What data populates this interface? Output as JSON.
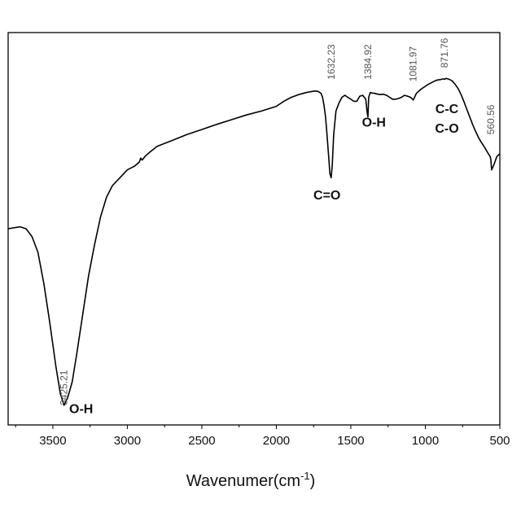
{
  "chart_data": {
    "type": "line",
    "title": "",
    "xlabel": "Wavenumer(cm",
    "xlabel_sup": "-1",
    "xlabel_close": ")",
    "ylabel": "",
    "xlim": [
      3800,
      500
    ],
    "ylim": [
      0,
      100
    ],
    "x_reversed": true,
    "y_ticks_visible": false,
    "grid": false,
    "line_color": "#000000",
    "xticks": [
      {
        "value": 3500,
        "label": "3500"
      },
      {
        "value": 3000,
        "label": "3000"
      },
      {
        "value": 2500,
        "label": "2500"
      },
      {
        "value": 2000,
        "label": "2000"
      },
      {
        "value": 1500,
        "label": "1500"
      },
      {
        "value": 1000,
        "label": "1000"
      },
      {
        "value": 500,
        "label": "500"
      }
    ],
    "series": [
      {
        "x": [
          3800,
          3720,
          3680,
          3640,
          3600,
          3560,
          3520,
          3480,
          3450,
          3425,
          3400,
          3370,
          3340,
          3300,
          3260,
          3220,
          3180,
          3140,
          3100,
          3050,
          3000,
          2950,
          2920,
          2910,
          2900,
          2880,
          2850,
          2800,
          2700,
          2600,
          2500,
          2400,
          2300,
          2200,
          2100,
          2000,
          1950,
          1900,
          1850,
          1800,
          1760,
          1740,
          1720,
          1700,
          1690,
          1680,
          1670,
          1660,
          1650,
          1640,
          1632,
          1625,
          1615,
          1600,
          1580,
          1560,
          1540,
          1520,
          1500,
          1480,
          1460,
          1440,
          1420,
          1400,
          1390,
          1385,
          1380,
          1370,
          1360,
          1340,
          1320,
          1300,
          1280,
          1260,
          1240,
          1220,
          1200,
          1180,
          1160,
          1140,
          1120,
          1100,
          1085,
          1082,
          1075,
          1060,
          1040,
          1020,
          1000,
          980,
          960,
          940,
          920,
          900,
          880,
          872,
          860,
          840,
          820,
          800,
          780,
          760,
          740,
          720,
          700,
          680,
          660,
          640,
          620,
          600,
          580,
          565,
          560,
          555,
          540,
          520,
          500
        ],
        "y": [
          50,
          50.5,
          50,
          48,
          44,
          36,
          26,
          15,
          8,
          5,
          7,
          11,
          18,
          28,
          38,
          46,
          53,
          58,
          61,
          63,
          65,
          66,
          67,
          68,
          67.5,
          68.5,
          69.5,
          71,
          72.5,
          74,
          75.3,
          76.6,
          77.8,
          79,
          80,
          81.2,
          82.5,
          83.5,
          84.2,
          84.7,
          85,
          85.1,
          85,
          84.5,
          83.5,
          81.5,
          78.5,
          74,
          69,
          64,
          63,
          66,
          74,
          80,
          82,
          83.5,
          84,
          83.5,
          83,
          82.5,
          82.5,
          83.8,
          84,
          83,
          79.5,
          78.5,
          83.5,
          84.7,
          84.6,
          84.5,
          84.3,
          84.2,
          84.3,
          84,
          83.5,
          83,
          83,
          83.2,
          83.5,
          84,
          83.8,
          83.5,
          83,
          82.8,
          83.3,
          84.5,
          85.2,
          85.8,
          86.3,
          86.8,
          87.2,
          87.6,
          87.9,
          88,
          88.2,
          88.1,
          88.3,
          88.1,
          87.7,
          86.8,
          85.7,
          84.2,
          82.3,
          80.3,
          78.3,
          76.3,
          74.6,
          73,
          71.8,
          70.6,
          69.3,
          68.4,
          67.5,
          65,
          66.3,
          68.4,
          69.1
        ]
      }
    ],
    "annotations": [
      {
        "kind": "peak",
        "text": "3425.21",
        "x": 3425,
        "y": 5
      },
      {
        "kind": "peak",
        "text": "1632.23",
        "x": 1632,
        "y": 88
      },
      {
        "kind": "peak",
        "text": "1384.92",
        "x": 1385,
        "y": 88
      },
      {
        "kind": "peak",
        "text": "1081.97",
        "x": 1082,
        "y": 87.5
      },
      {
        "kind": "peak",
        "text": "871.76",
        "x": 872,
        "y": 91
      },
      {
        "kind": "peak",
        "text": "560.56",
        "x": 561,
        "y": 74
      },
      {
        "kind": "group",
        "text": "O-H",
        "x": 3310,
        "y": 3
      },
      {
        "kind": "group",
        "text": "C=O",
        "x": 1660,
        "y": 57.5
      },
      {
        "kind": "group",
        "text": "O-H",
        "x": 1345,
        "y": 76
      },
      {
        "kind": "group",
        "text": "C-C",
        "x": 855,
        "y": 79.5
      },
      {
        "kind": "group",
        "text": "C-O",
        "x": 855,
        "y": 74.5
      }
    ]
  }
}
